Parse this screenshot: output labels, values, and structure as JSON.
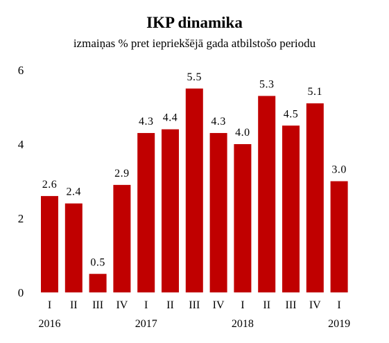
{
  "chart_data": {
    "type": "bar",
    "title": "IKP dinamika",
    "subtitle": "izmaiņas % pret iepriekšējā gada atbilstošo periodu",
    "categories": [
      "I",
      "II",
      "III",
      "IV",
      "I",
      "II",
      "III",
      "IV",
      "I",
      "II",
      "III",
      "IV",
      "I"
    ],
    "years": [
      {
        "label": "2016",
        "start_index": 0
      },
      {
        "label": "2017",
        "start_index": 4
      },
      {
        "label": "2018",
        "start_index": 8
      },
      {
        "label": "2019",
        "start_index": 12
      }
    ],
    "values": [
      2.6,
      2.4,
      0.5,
      2.9,
      4.3,
      4.4,
      5.5,
      4.3,
      4.0,
      5.3,
      4.5,
      5.1,
      3.0
    ],
    "value_labels": [
      "2.6",
      "2.4",
      "0.5",
      "2.9",
      "4.3",
      "4.4",
      "5.5",
      "4.3",
      "4.0",
      "5.3",
      "4.5",
      "5.1",
      "3.0"
    ],
    "yticks": [
      "0",
      "2",
      "4",
      "6"
    ],
    "ylim": [
      0,
      6
    ],
    "bar_color": "#c00000",
    "grid": false,
    "legend": "none"
  }
}
